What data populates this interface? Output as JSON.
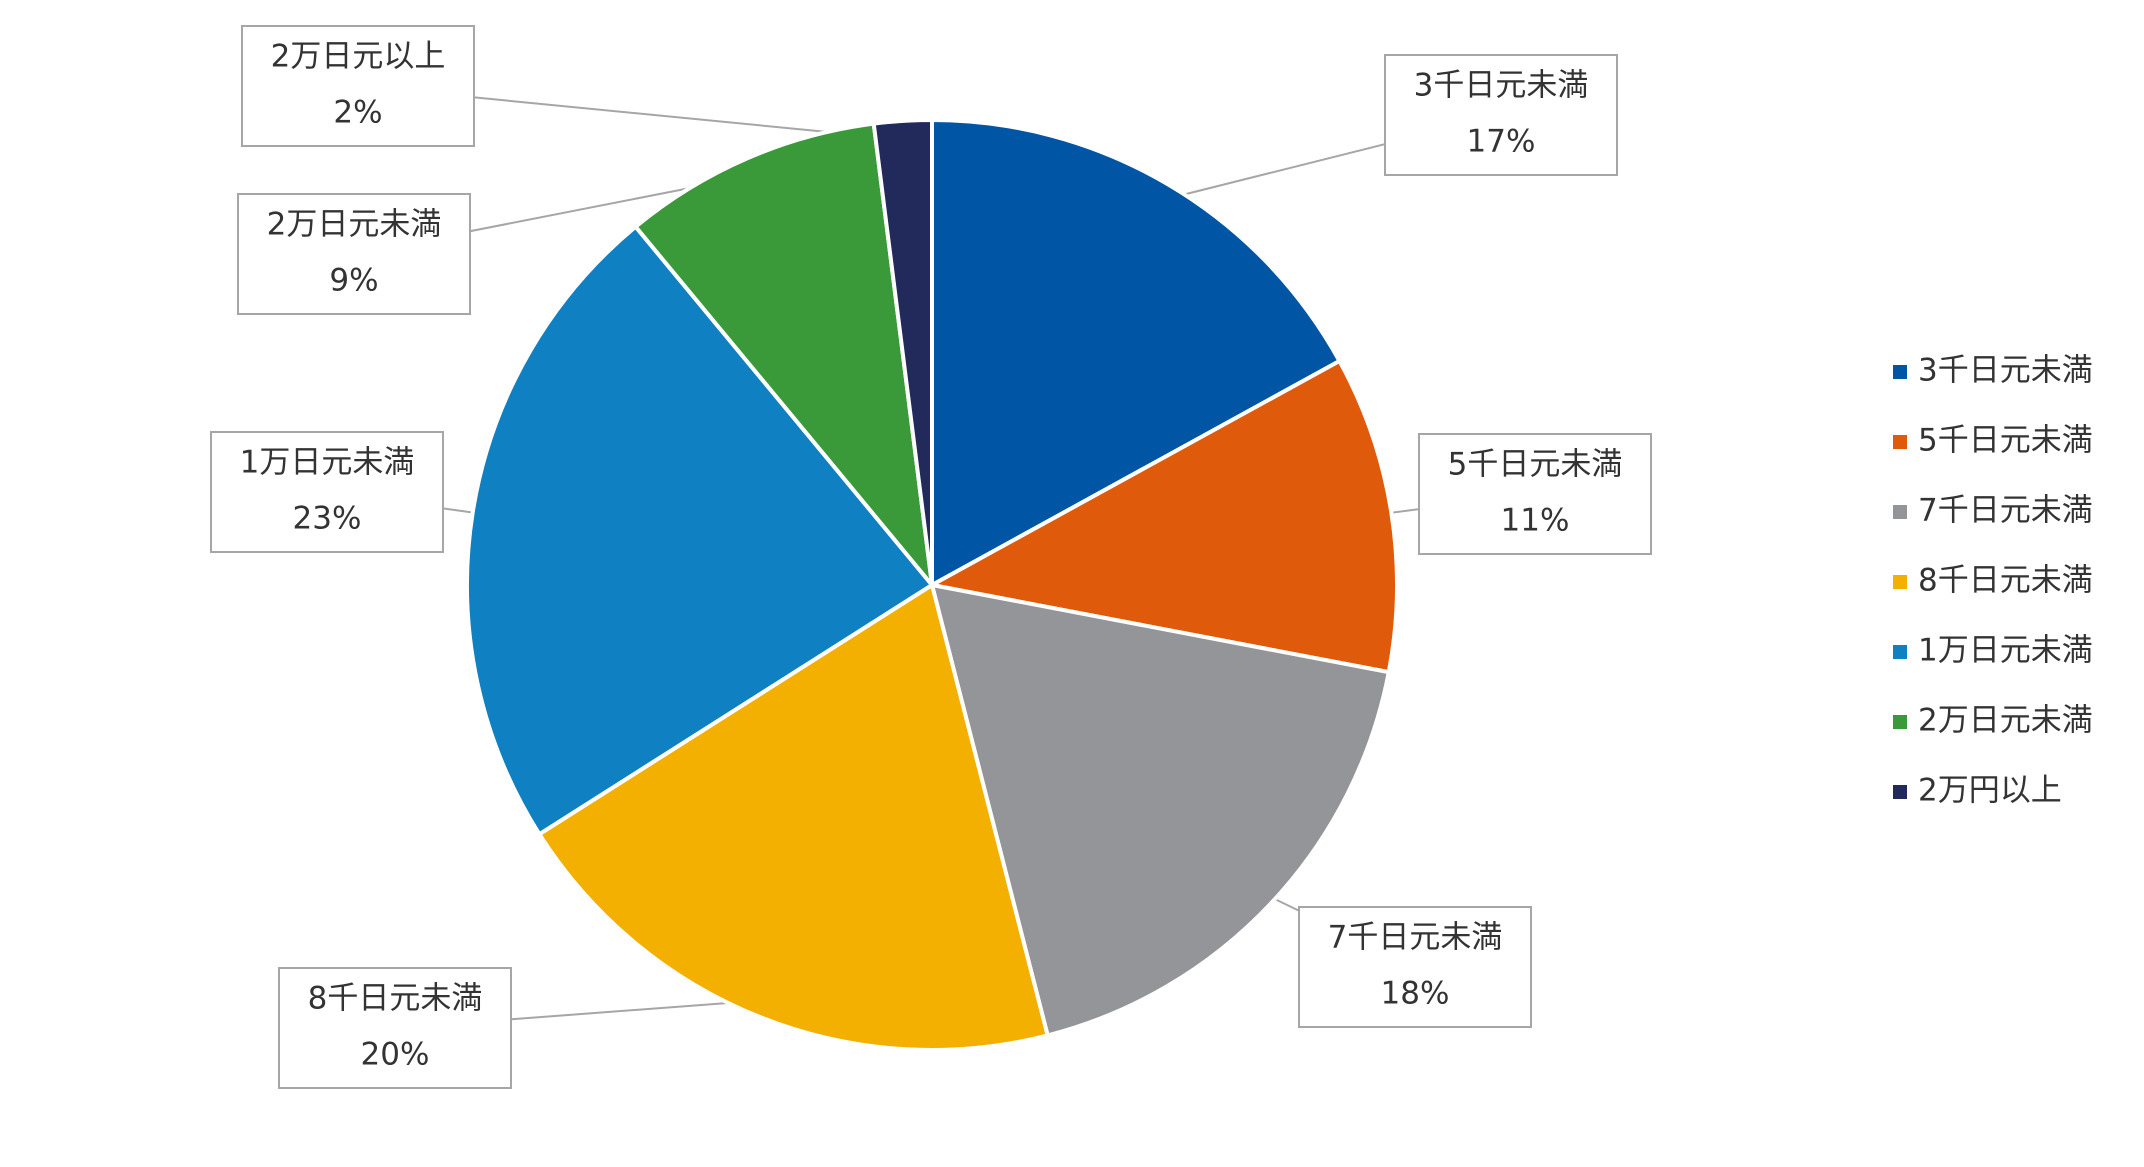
{
  "chart_data": {
    "type": "pie",
    "categories": [
      "3千日元未満",
      "5千日元未満",
      "7千日元未満",
      "8千日元未満",
      "1万日元未満",
      "2万日元未満",
      "2万円以上"
    ],
    "values": [
      17,
      11,
      18,
      20,
      23,
      9,
      2
    ],
    "value_labels": [
      "17%",
      "11%",
      "18%",
      "20%",
      "23%",
      "9%",
      "2%"
    ],
    "data_label_names": [
      "3千日元未満",
      "5千日元未満",
      "7千日元未満",
      "8千日元未満",
      "1万日元未満",
      "2万日元未満",
      "2万日元以上"
    ],
    "colors": [
      "#0055a5",
      "#e05a0c",
      "#939598",
      "#f4b000",
      "#0f80c1",
      "#3a9a3a",
      "#222a5c"
    ],
    "legend": "right"
  }
}
